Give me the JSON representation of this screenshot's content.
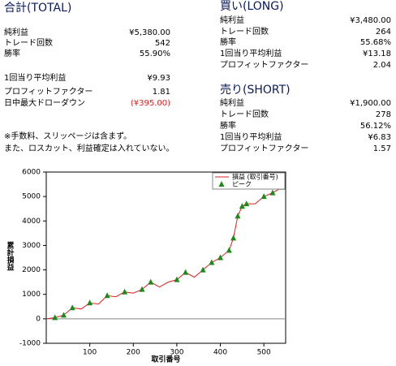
{
  "total": {
    "title": "合計(TOTAL)",
    "rows": [
      {
        "label": "純利益",
        "value": "¥5,380.00"
      },
      {
        "label": "トレード回数",
        "value": "542"
      },
      {
        "label": "勝率",
        "value": "55.90%"
      },
      {
        "label": "1回当り平均利益",
        "value": "¥9.93"
      },
      {
        "label": "プロフィットファクター",
        "value": "1.81"
      },
      {
        "label": "日中最大ドローダウン",
        "value": "(¥395.00)"
      }
    ]
  },
  "notes": [
    "※手数料、スリッページは含まず。",
    "また、ロスカット、利益確定は入れていない。"
  ],
  "long": {
    "title": "買い(LONG)",
    "rows": [
      {
        "label": "純利益",
        "value": "¥3,480.00"
      },
      {
        "label": "トレード回数",
        "value": "264"
      },
      {
        "label": "勝率",
        "value": "55.68%"
      },
      {
        "label": "1回当り平均利益",
        "value": "¥13.18"
      },
      {
        "label": "プロフィットファクター",
        "value": "2.04"
      }
    ]
  },
  "short": {
    "title": "売り(SHORT)",
    "rows": [
      {
        "label": "純利益",
        "value": "¥1,900.00"
      },
      {
        "label": "トレード回数",
        "value": "278"
      },
      {
        "label": "勝率",
        "value": "56.12%"
      },
      {
        "label": "1回当り平均利益",
        "value": "¥6.83"
      },
      {
        "label": "プロフィットファクター",
        "value": "1.57"
      }
    ]
  },
  "chart_data": {
    "type": "line",
    "x_label": "取引番号",
    "y_label": "累計損益",
    "xlim": [
      0,
      550
    ],
    "xticks": [
      100,
      200,
      300,
      400,
      500
    ],
    "ylim": [
      -1000,
      6000
    ],
    "yticks": [
      -1000,
      0,
      1000,
      2000,
      3000,
      4000,
      5000,
      6000
    ],
    "legend": "top-right",
    "series": [
      {
        "name": "損益 (取引番号)",
        "color": "#e02020",
        "x": [
          0,
          20,
          40,
          60,
          80,
          100,
          120,
          140,
          160,
          180,
          200,
          220,
          240,
          260,
          280,
          300,
          320,
          340,
          360,
          380,
          400,
          420,
          430,
          440,
          450,
          460,
          480,
          500,
          520,
          542
        ],
        "values": [
          0,
          50,
          150,
          450,
          400,
          650,
          600,
          950,
          900,
          1100,
          1050,
          1200,
          1500,
          1300,
          1500,
          1600,
          1900,
          1700,
          2000,
          2300,
          2500,
          2800,
          3300,
          4200,
          4600,
          4700,
          4700,
          5000,
          5150,
          5380
        ]
      },
      {
        "name": "ピーク",
        "color": "#1a8a1a",
        "x": [
          20,
          40,
          60,
          100,
          140,
          180,
          220,
          240,
          300,
          320,
          360,
          380,
          400,
          420,
          430,
          440,
          450,
          460,
          500,
          520,
          542
        ],
        "values": [
          50,
          150,
          450,
          650,
          950,
          1100,
          1200,
          1500,
          1600,
          1900,
          2000,
          2300,
          2500,
          2800,
          3300,
          4200,
          4600,
          4700,
          5000,
          5150,
          5380
        ]
      }
    ]
  }
}
